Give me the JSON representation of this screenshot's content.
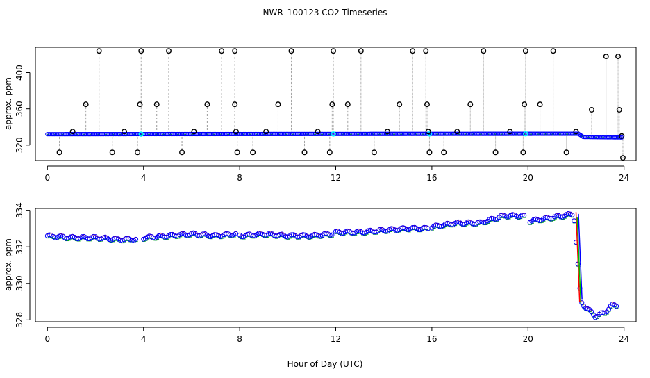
{
  "title": "NWR_100123  CO2 Timeseries",
  "xlabel": "Hour of Day (UTC)",
  "colors": {
    "outlier": "#000000",
    "primary": "#0000ff",
    "secondary": "#00bb00",
    "tertiary": "#ff0000",
    "highlight": "#00ffff",
    "stem": "#999999",
    "axis": "#000000"
  },
  "chart_data": [
    {
      "type": "scatter",
      "id": "top",
      "ylabel": "approx. ppm",
      "xlim": [
        -0.5,
        24.5
      ],
      "ylim": [
        303,
        428
      ],
      "xticks": [
        0,
        4,
        8,
        12,
        16,
        20,
        24
      ],
      "yticks": [
        320,
        360,
        400
      ],
      "baseline": [
        [
          0,
          332
        ],
        [
          22.1,
          332.5
        ],
        [
          22.3,
          329
        ],
        [
          23.9,
          328.5
        ]
      ],
      "spikes": [
        {
          "x": 0.5,
          "y": 312
        },
        {
          "x": 1.05,
          "y": 335
        },
        {
          "x": 1.6,
          "y": 365
        },
        {
          "x": 2.15,
          "y": 424
        },
        {
          "x": 2.7,
          "y": 312
        },
        {
          "x": 3.2,
          "y": 335
        },
        {
          "x": 3.75,
          "y": 312
        },
        {
          "x": 3.85,
          "y": 365
        },
        {
          "x": 3.9,
          "y": 424
        },
        {
          "x": 4.55,
          "y": 365
        },
        {
          "x": 5.05,
          "y": 424
        },
        {
          "x": 5.6,
          "y": 312
        },
        {
          "x": 6.1,
          "y": 335
        },
        {
          "x": 6.65,
          "y": 365
        },
        {
          "x": 7.25,
          "y": 424
        },
        {
          "x": 7.8,
          "y": 424
        },
        {
          "x": 7.8,
          "y": 365
        },
        {
          "x": 7.85,
          "y": 335
        },
        {
          "x": 7.9,
          "y": 312
        },
        {
          "x": 8.55,
          "y": 312
        },
        {
          "x": 9.1,
          "y": 335
        },
        {
          "x": 9.6,
          "y": 365
        },
        {
          "x": 10.15,
          "y": 424
        },
        {
          "x": 10.7,
          "y": 312
        },
        {
          "x": 11.25,
          "y": 335
        },
        {
          "x": 11.75,
          "y": 312
        },
        {
          "x": 11.85,
          "y": 365
        },
        {
          "x": 11.9,
          "y": 424
        },
        {
          "x": 12.5,
          "y": 365
        },
        {
          "x": 13.05,
          "y": 424
        },
        {
          "x": 13.6,
          "y": 312
        },
        {
          "x": 14.15,
          "y": 335
        },
        {
          "x": 14.65,
          "y": 365
        },
        {
          "x": 15.2,
          "y": 424
        },
        {
          "x": 15.75,
          "y": 424
        },
        {
          "x": 15.8,
          "y": 365
        },
        {
          "x": 15.85,
          "y": 335
        },
        {
          "x": 15.9,
          "y": 312
        },
        {
          "x": 16.5,
          "y": 312
        },
        {
          "x": 17.05,
          "y": 335
        },
        {
          "x": 17.6,
          "y": 365
        },
        {
          "x": 18.15,
          "y": 424
        },
        {
          "x": 18.65,
          "y": 312
        },
        {
          "x": 19.25,
          "y": 335
        },
        {
          "x": 19.8,
          "y": 312
        },
        {
          "x": 19.85,
          "y": 365
        },
        {
          "x": 19.9,
          "y": 424
        },
        {
          "x": 20.5,
          "y": 365
        },
        {
          "x": 21.05,
          "y": 424
        },
        {
          "x": 21.6,
          "y": 312
        },
        {
          "x": 22.0,
          "y": 335
        },
        {
          "x": 22.65,
          "y": 359
        },
        {
          "x": 23.25,
          "y": 418
        },
        {
          "x": 23.75,
          "y": 418
        },
        {
          "x": 23.8,
          "y": 359
        },
        {
          "x": 23.9,
          "y": 330
        },
        {
          "x": 23.95,
          "y": 306
        }
      ]
    },
    {
      "type": "scatter",
      "id": "bottom",
      "ylabel": "approx. ppm",
      "xlim": [
        -0.5,
        24.5
      ],
      "ylim": [
        327.9,
        334.1
      ],
      "xticks": [
        0,
        4,
        8,
        12,
        16,
        20,
        24
      ],
      "yticks": [
        328,
        330,
        332,
        334
      ],
      "series": [
        {
          "name": "primary",
          "points": [
            [
              0,
              332.6
            ],
            [
              1,
              332.5
            ],
            [
              2,
              332.5
            ],
            [
              3,
              332.4
            ],
            [
              3.7,
              332.4
            ],
            [
              4.05,
              332.5
            ],
            [
              5,
              332.6
            ],
            [
              6,
              332.7
            ],
            [
              7,
              332.6
            ],
            [
              7.8,
              332.7
            ],
            [
              8.05,
              332.6
            ],
            [
              9,
              332.7
            ],
            [
              10,
              332.6
            ],
            [
              11,
              332.6
            ],
            [
              11.8,
              332.7
            ],
            [
              12.05,
              332.8
            ],
            [
              13,
              332.8
            ],
            [
              14,
              332.9
            ],
            [
              15,
              333.0
            ],
            [
              15.8,
              333.0
            ],
            [
              16.05,
              333.1
            ],
            [
              17,
              333.3
            ],
            [
              18,
              333.3
            ],
            [
              19,
              333.7
            ],
            [
              19.8,
              333.7
            ],
            [
              20.05,
              333.4
            ],
            [
              21,
              333.6
            ],
            [
              21.9,
              333.8
            ],
            [
              22.05,
              331.5
            ],
            [
              22.2,
              329.0
            ],
            [
              22.4,
              328.7
            ],
            [
              22.8,
              328.2
            ],
            [
              23.2,
              328.4
            ],
            [
              23.5,
              328.8
            ],
            [
              23.7,
              328.8
            ]
          ]
        },
        {
          "name": "secondary",
          "offset": -0.12
        },
        {
          "name": "tertiary",
          "offset": 0.1
        }
      ]
    }
  ]
}
